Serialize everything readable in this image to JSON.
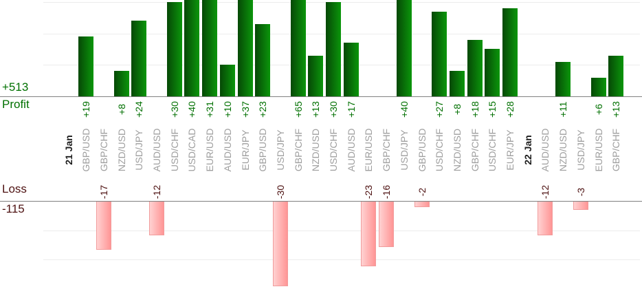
{
  "axis_labels": {
    "profit_total": "+513",
    "profit": "Profit",
    "loss": "Loss",
    "loss_total": "-115"
  },
  "colors": {
    "profit_text": "#007000",
    "loss_text": "#4d1111",
    "pair_text": "#9e9e9e",
    "date_text": "#1c1c1c",
    "axis_line": "#808080",
    "gridline": "#ececec",
    "profit_bar_dark": "#064806",
    "profit_bar_light": "#0b960b",
    "loss_bar_light": "#ffd2d2",
    "loss_bar_deep": "#ff9595",
    "loss_bar_border": "#f19c9c"
  },
  "chart_data": {
    "type": "bar",
    "title": "",
    "profit_axis": {
      "label": "Profit",
      "total": 513,
      "total_text": "+513",
      "grid_step": 10
    },
    "loss_axis": {
      "label": "Loss",
      "total": -115,
      "total_text": "-115",
      "grid_step": 10
    },
    "legend_position": "none",
    "grid": "horizontal-light",
    "entries": [
      {
        "kind": "date",
        "label": "21 Jan"
      },
      {
        "kind": "trade",
        "pair": "GBP/USD",
        "value": 19
      },
      {
        "kind": "trade",
        "pair": "GBP/CHF",
        "value": -17
      },
      {
        "kind": "trade",
        "pair": "NZD/USD",
        "value": 8
      },
      {
        "kind": "trade",
        "pair": "USD/JPY",
        "value": 24
      },
      {
        "kind": "trade",
        "pair": "AUD/USD",
        "value": -12
      },
      {
        "kind": "trade",
        "pair": "USD/CHF",
        "value": 30
      },
      {
        "kind": "trade",
        "pair": "USD/CAD",
        "value": 40
      },
      {
        "kind": "trade",
        "pair": "EUR/USD",
        "value": 31
      },
      {
        "kind": "trade",
        "pair": "AUD/USD",
        "value": 10
      },
      {
        "kind": "trade",
        "pair": "EUR/JPY",
        "value": 37
      },
      {
        "kind": "trade",
        "pair": "GBP/USD",
        "value": 23
      },
      {
        "kind": "trade",
        "pair": "USD/JPY",
        "value": -30
      },
      {
        "kind": "trade",
        "pair": "GBP/CHF",
        "value": 65
      },
      {
        "kind": "trade",
        "pair": "NZD/USD",
        "value": 13
      },
      {
        "kind": "trade",
        "pair": "USD/CHF",
        "value": 30
      },
      {
        "kind": "trade",
        "pair": "AUD/USD",
        "value": 17
      },
      {
        "kind": "trade",
        "pair": "EUR/USD",
        "value": -23
      },
      {
        "kind": "trade",
        "pair": "GBP/CHF",
        "value": -16
      },
      {
        "kind": "trade",
        "pair": "USD/JPY",
        "value": 40
      },
      {
        "kind": "trade",
        "pair": "GBP/USD",
        "value": -2
      },
      {
        "kind": "trade",
        "pair": "USD/CHF",
        "value": 27
      },
      {
        "kind": "trade",
        "pair": "NZD/USD",
        "value": 8
      },
      {
        "kind": "trade",
        "pair": "GBP/CHF",
        "value": 18
      },
      {
        "kind": "trade",
        "pair": "USD/CHF",
        "value": 15
      },
      {
        "kind": "trade",
        "pair": "EUR/JPY",
        "value": 28
      },
      {
        "kind": "date",
        "label": "22 Jan"
      },
      {
        "kind": "trade",
        "pair": "AUD/USD",
        "value": -12
      },
      {
        "kind": "trade",
        "pair": "NZD/USD",
        "value": 11
      },
      {
        "kind": "trade",
        "pair": "USD/JPY",
        "value": -3
      },
      {
        "kind": "trade",
        "pair": "EUR/USD",
        "value": 6
      },
      {
        "kind": "trade",
        "pair": "GBP/CHF",
        "value": 13
      }
    ]
  }
}
